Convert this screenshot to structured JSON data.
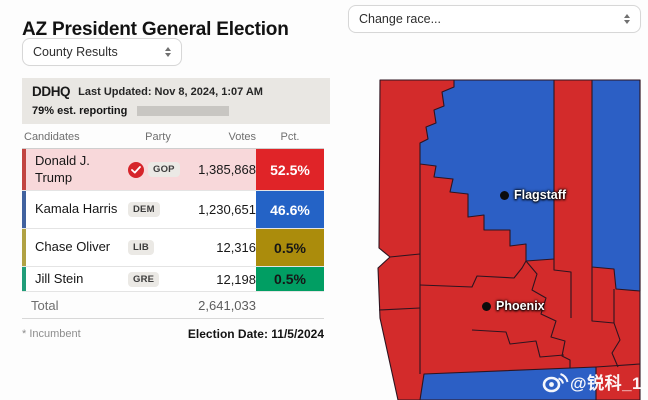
{
  "header": {
    "title": "AZ President General Election",
    "view_selector": "County Results",
    "race_selector": "Change race..."
  },
  "status": {
    "source_logo": "DDHQ",
    "last_updated": "Last Updated: Nov 8, 2024, 1:07 AM",
    "reporting_label": "79% est. reporting",
    "reporting_pct": 79
  },
  "results_table": {
    "columns": [
      "Candidates",
      "Party",
      "Votes",
      "Pct."
    ],
    "rows": [
      {
        "name": "Donald J. Trump",
        "party": "GOP",
        "votes": "1,385,868",
        "pct": "52.5%",
        "winner": true,
        "color": "#e02428",
        "accent": "#c24440",
        "row_bg": "#f8d8da",
        "pct_text": "#ffffff"
      },
      {
        "name": "Kamala Harris",
        "party": "DEM",
        "votes": "1,230,651",
        "pct": "46.6%",
        "winner": false,
        "color": "#2463c6",
        "accent": "#41629f",
        "row_bg": "#ffffff",
        "pct_text": "#ffffff"
      },
      {
        "name": "Chase Oliver",
        "party": "LIB",
        "votes": "12,316",
        "pct": "0.5%",
        "winner": false,
        "color": "#ab8c0c",
        "accent": "#b1a243",
        "row_bg": "#ffffff",
        "pct_text": "#161616"
      },
      {
        "name": "Jill Stein",
        "party": "GRE",
        "votes": "12,198",
        "pct": "0.5%",
        "winner": false,
        "color": "#019e63",
        "accent": "#219d79",
        "row_bg": "#ffffff",
        "pct_text": "#161616"
      }
    ],
    "total_label": "Total",
    "total_votes": "2,641,033"
  },
  "footer": {
    "incumbent_note": "* Incumbent",
    "election_date": "Election Date: 11/5/2024"
  },
  "map": {
    "rep_color": "#d32b2b",
    "dem_color": "#2c5fc5",
    "cities": [
      {
        "name": "Flagstaff"
      },
      {
        "name": "Phoenix"
      }
    ],
    "watermark": "@锐科_1"
  }
}
